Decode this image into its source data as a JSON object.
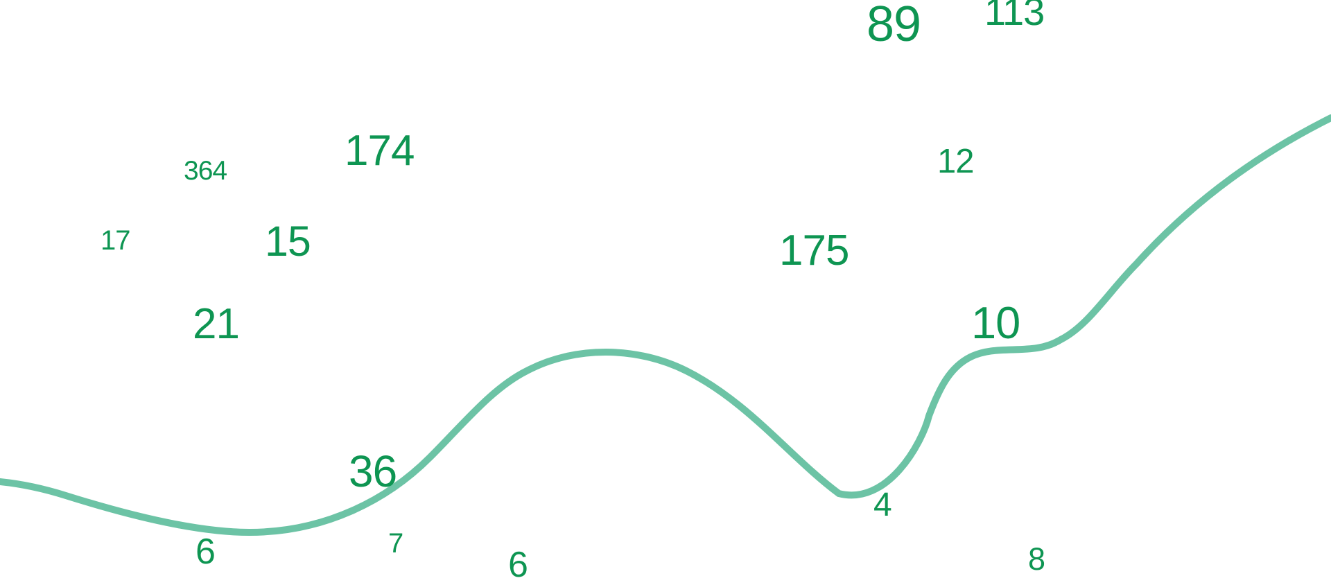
{
  "numbers": [
    "89",
    "113",
    "364",
    "174",
    "12",
    "17",
    "15",
    "175",
    "21",
    "10",
    "36",
    "4",
    "7",
    "6",
    "6",
    "8"
  ],
  "colors": {
    "number": "#0e9552",
    "line": "#6cc3a5",
    "background": "#ffffff"
  }
}
